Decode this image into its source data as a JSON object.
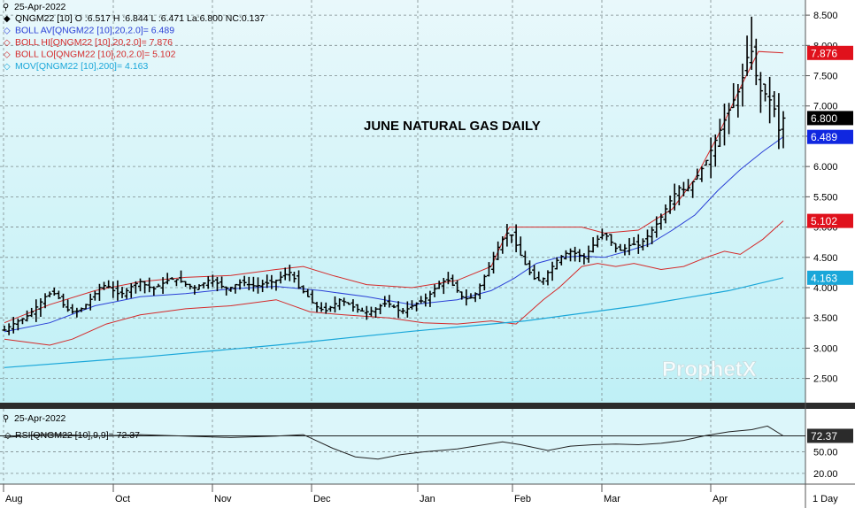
{
  "header": {
    "date": "25-Apr-2022",
    "legend": [
      {
        "text": "QNGM22 [10] O :6.517 H :6.844 L :6.471 La:6.800 NC:0.137",
        "color": "#000000",
        "marker": "filled-diamond"
      },
      {
        "text": "BOLL AV[QNGM22 [10],20,2.0]= 6.489",
        "color": "#2a3fd6",
        "marker": "diamond"
      },
      {
        "text": "BOLL HI[QNGM22 [10],20,2.0]= 7.876",
        "color": "#d42a2a",
        "marker": "diamond"
      },
      {
        "text": "BOLL LO[QNGM22 [10],20,2.0]= 5.102",
        "color": "#d42a2a",
        "marker": "diamond"
      },
      {
        "text": "MOV[QNGM22 [10],200]= 4.163",
        "color": "#1aa7d9",
        "marker": "diamond"
      }
    ]
  },
  "rsi_header": {
    "date": "25-Apr-2022",
    "legend": "RSI[QNGM22 [10],9,9]= 72.37"
  },
  "watermark": {
    "brand": "ProphetX"
  },
  "chart_data": [
    {
      "type": "ohlc",
      "title": "JUNE NATURAL GAS DAILY",
      "x_labels": [
        "Aug",
        "Oct",
        "Nov",
        "Dec",
        "Jan",
        "Feb",
        "Mar",
        "Apr"
      ],
      "y_ticks": [
        2.5,
        3.0,
        3.5,
        4.0,
        4.5,
        5.0,
        5.5,
        6.0,
        6.5,
        7.0,
        7.5,
        8.0,
        8.5
      ],
      "ylim": [
        2.1,
        8.75
      ],
      "grid": true,
      "series": [
        {
          "name": "QNGM22 [10]",
          "color": "#000000",
          "close": [
            [
              0,
              3.3
            ],
            [
              3,
              3.38
            ],
            [
              6,
              3.45
            ],
            [
              9,
              3.5
            ],
            [
              12,
              3.6
            ],
            [
              15,
              3.72
            ],
            [
              18,
              3.85
            ],
            [
              21,
              3.92
            ],
            [
              23,
              3.88
            ],
            [
              25,
              3.78
            ],
            [
              27,
              3.65
            ],
            [
              30,
              3.6
            ],
            [
              33,
              3.62
            ],
            [
              36,
              3.72
            ],
            [
              39,
              3.85
            ],
            [
              42,
              4.0
            ],
            [
              45,
              4.05
            ],
            [
              48,
              3.95
            ],
            [
              51,
              3.88
            ],
            [
              54,
              3.95
            ],
            [
              57,
              4.05
            ],
            [
              60,
              4.1
            ],
            [
              63,
              4.02
            ],
            [
              66,
              3.98
            ],
            [
              69,
              4.05
            ],
            [
              72,
              4.12
            ],
            [
              75,
              4.15
            ],
            [
              78,
              4.1
            ],
            [
              81,
              4.03
            ],
            [
              84,
              4.0
            ],
            [
              87,
              4.05
            ],
            [
              90,
              4.12
            ],
            [
              93,
              4.1
            ],
            [
              96,
              4.02
            ],
            [
              99,
              3.98
            ],
            [
              102,
              4.05
            ],
            [
              105,
              4.1
            ],
            [
              108,
              4.05
            ],
            [
              111,
              4.02
            ],
            [
              114,
              4.06
            ],
            [
              117,
              4.08
            ],
            [
              120,
              4.12
            ],
            [
              123,
              4.2
            ],
            [
              126,
              4.25
            ],
            [
              128,
              4.15
            ],
            [
              130,
              4.0
            ],
            [
              133,
              3.9
            ],
            [
              136,
              3.75
            ],
            [
              139,
              3.65
            ],
            [
              142,
              3.62
            ],
            [
              145,
              3.7
            ],
            [
              148,
              3.8
            ],
            [
              151,
              3.75
            ],
            [
              154,
              3.68
            ],
            [
              157,
              3.62
            ],
            [
              160,
              3.6
            ],
            [
              163,
              3.62
            ],
            [
              166,
              3.7
            ],
            [
              169,
              3.75
            ],
            [
              172,
              3.68
            ],
            [
              175,
              3.6
            ],
            [
              178,
              3.65
            ],
            [
              181,
              3.72
            ],
            [
              184,
              3.78
            ],
            [
              187,
              3.85
            ],
            [
              190,
              3.98
            ],
            [
              193,
              4.1
            ],
            [
              196,
              4.12
            ],
            [
              199,
              4.0
            ],
            [
              202,
              3.85
            ],
            [
              205,
              3.8
            ],
            [
              208,
              3.9
            ],
            [
              211,
              4.1
            ],
            [
              214,
              4.35
            ],
            [
              217,
              4.6
            ],
            [
              220,
              4.8
            ],
            [
              223,
              4.95
            ],
            [
              226,
              4.7
            ],
            [
              229,
              4.45
            ],
            [
              232,
              4.25
            ],
            [
              235,
              4.1
            ],
            [
              238,
              4.15
            ],
            [
              241,
              4.3
            ],
            [
              244,
              4.45
            ],
            [
              247,
              4.55
            ],
            [
              250,
              4.6
            ],
            [
              253,
              4.55
            ],
            [
              256,
              4.5
            ],
            [
              259,
              4.65
            ],
            [
              262,
              4.8
            ],
            [
              265,
              4.9
            ],
            [
              268,
              4.75
            ],
            [
              271,
              4.6
            ],
            [
              274,
              4.65
            ],
            [
              277,
              4.72
            ],
            [
              280,
              4.7
            ],
            [
              283,
              4.8
            ],
            [
              286,
              4.95
            ],
            [
              289,
              5.1
            ],
            [
              292,
              5.3
            ],
            [
              295,
              5.5
            ],
            [
              298,
              5.65
            ],
            [
              301,
              5.6
            ],
            [
              304,
              5.75
            ],
            [
              307,
              5.9
            ],
            [
              310,
              6.1
            ],
            [
              313,
              6.35
            ],
            [
              316,
              6.6
            ],
            [
              319,
              6.85
            ],
            [
              322,
              7.1
            ],
            [
              325,
              7.3
            ],
            [
              328,
              7.8
            ],
            [
              330,
              7.9
            ],
            [
              332,
              7.5
            ],
            [
              334,
              7.25
            ],
            [
              336,
              7.2
            ],
            [
              338,
              7.1
            ],
            [
              340,
              6.95
            ],
            [
              342,
              6.6
            ],
            [
              344,
              6.8
            ]
          ]
        },
        {
          "name": "BOLL AV",
          "color": "#2a3fd6",
          "values": [
            [
              0,
              3.27
            ],
            [
              20,
              3.42
            ],
            [
              40,
              3.7
            ],
            [
              60,
              3.85
            ],
            [
              80,
              3.9
            ],
            [
              100,
              3.98
            ],
            [
              120,
              4.02
            ],
            [
              140,
              3.95
            ],
            [
              160,
              3.85
            ],
            [
              180,
              3.72
            ],
            [
              200,
              3.8
            ],
            [
              215,
              3.95
            ],
            [
              225,
              4.15
            ],
            [
              235,
              4.4
            ],
            [
              245,
              4.5
            ],
            [
              255,
              4.52
            ],
            [
              265,
              4.5
            ],
            [
              275,
              4.6
            ],
            [
              285,
              4.72
            ],
            [
              295,
              4.95
            ],
            [
              305,
              5.2
            ],
            [
              315,
              5.6
            ],
            [
              325,
              5.95
            ],
            [
              335,
              6.25
            ],
            [
              344,
              6.489
            ]
          ]
        },
        {
          "name": "BOLL HI",
          "color": "#d42a2a",
          "values": [
            [
              0,
              3.42
            ],
            [
              20,
              3.72
            ],
            [
              40,
              3.95
            ],
            [
              60,
              4.1
            ],
            [
              80,
              4.17
            ],
            [
              100,
              4.2
            ],
            [
              120,
              4.3
            ],
            [
              132,
              4.35
            ],
            [
              145,
              4.2
            ],
            [
              160,
              4.05
            ],
            [
              180,
              4.0
            ],
            [
              200,
              4.12
            ],
            [
              215,
              4.35
            ],
            [
              223,
              5.0
            ],
            [
              240,
              5.0
            ],
            [
              255,
              5.0
            ],
            [
              265,
              4.9
            ],
            [
              280,
              4.95
            ],
            [
              295,
              5.3
            ],
            [
              305,
              5.8
            ],
            [
              315,
              6.5
            ],
            [
              325,
              7.3
            ],
            [
              333,
              7.9
            ],
            [
              344,
              7.876
            ]
          ]
        },
        {
          "name": "BOLL LO",
          "color": "#d42a2a",
          "values": [
            [
              0,
              3.15
            ],
            [
              10,
              3.1
            ],
            [
              20,
              3.05
            ],
            [
              30,
              3.15
            ],
            [
              45,
              3.4
            ],
            [
              60,
              3.55
            ],
            [
              80,
              3.65
            ],
            [
              100,
              3.7
            ],
            [
              120,
              3.8
            ],
            [
              135,
              3.6
            ],
            [
              150,
              3.55
            ],
            [
              170,
              3.5
            ],
            [
              185,
              3.42
            ],
            [
              200,
              3.4
            ],
            [
              215,
              3.45
            ],
            [
              226,
              3.4
            ],
            [
              232,
              3.6
            ],
            [
              238,
              3.8
            ],
            [
              245,
              4.0
            ],
            [
              255,
              4.35
            ],
            [
              262,
              4.4
            ],
            [
              270,
              4.35
            ],
            [
              278,
              4.4
            ],
            [
              290,
              4.3
            ],
            [
              300,
              4.35
            ],
            [
              310,
              4.5
            ],
            [
              318,
              4.6
            ],
            [
              325,
              4.55
            ],
            [
              335,
              4.8
            ],
            [
              344,
              5.102
            ]
          ]
        },
        {
          "name": "MOV",
          "color": "#1aa7d9",
          "values": [
            [
              0,
              2.68
            ],
            [
              60,
              2.85
            ],
            [
              120,
              3.05
            ],
            [
              180,
              3.28
            ],
            [
              230,
              3.45
            ],
            [
              280,
              3.7
            ],
            [
              320,
              3.95
            ],
            [
              344,
              4.163
            ]
          ]
        }
      ]
    },
    {
      "type": "line",
      "name": "RSI",
      "y_ticks": [
        20.0,
        50.0,
        72.37
      ],
      "ylim": [
        5,
        110
      ],
      "series": [
        {
          "name": "RSI[QNGM22 [10],9,9]",
          "color": "#000000",
          "values": [
            [
              0,
              70
            ],
            [
              20,
              75
            ],
            [
              40,
              72
            ],
            [
              60,
              74
            ],
            [
              80,
              72
            ],
            [
              100,
              70
            ],
            [
              120,
              72
            ],
            [
              132,
              74
            ],
            [
              145,
              55
            ],
            [
              155,
              43
            ],
            [
              165,
              40
            ],
            [
              175,
              46
            ],
            [
              185,
              50
            ],
            [
              200,
              54
            ],
            [
              220,
              64
            ],
            [
              228,
              60
            ],
            [
              240,
              52
            ],
            [
              250,
              58
            ],
            [
              260,
              60
            ],
            [
              270,
              61
            ],
            [
              280,
              60
            ],
            [
              290,
              62
            ],
            [
              300,
              66
            ],
            [
              310,
              73
            ],
            [
              320,
              78
            ],
            [
              330,
              81
            ],
            [
              337,
              86
            ],
            [
              344,
              72.37
            ]
          ]
        }
      ]
    }
  ],
  "value_badges": [
    {
      "text": "7.876",
      "value": 7.876,
      "bg": "#e0111c",
      "fg": "#ffffff"
    },
    {
      "text": "6.800",
      "value": 6.8,
      "bg": "#000000",
      "fg": "#ffffff"
    },
    {
      "text": "6.489",
      "value": 6.489,
      "bg": "#1027e0",
      "fg": "#ffffff"
    },
    {
      "text": "5.102",
      "value": 5.102,
      "bg": "#e0111c",
      "fg": "#ffffff"
    },
    {
      "text": "4.163",
      "value": 4.163,
      "bg": "#1aa7d9",
      "fg": "#ffffff"
    },
    {
      "text": "72.37",
      "value": 72.37,
      "bg": "#2b2b2b",
      "fg": "#ffffff"
    }
  ],
  "footer": {
    "interval": "1 Day"
  }
}
